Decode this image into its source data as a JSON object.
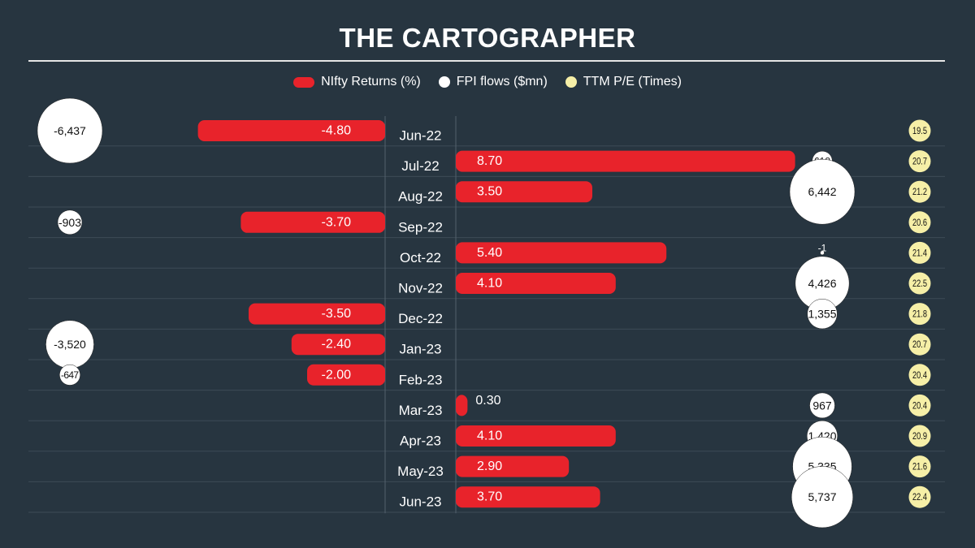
{
  "title": "THE CARTOGRAPHER",
  "colors": {
    "background": "#273540",
    "nifty": "#e8232b",
    "fpi": "#ffffff",
    "pe": "#f6efa7",
    "grid": "#3d4b56",
    "text": "#ffffff"
  },
  "legend": [
    {
      "label": "NIfty Returns (%)",
      "color": "#e8232b",
      "shape": "bar"
    },
    {
      "label": "FPI flows ($mn)",
      "color": "#ffffff",
      "shape": "dot"
    },
    {
      "label": "TTM P/E (Times)",
      "color": "#f6efa7",
      "shape": "dot"
    }
  ],
  "chart_data": {
    "type": "bar",
    "title": "THE CARTOGRAPHER",
    "categories": [
      "Jun-22",
      "Jul-22",
      "Aug-22",
      "Sep-22",
      "Oct-22",
      "Nov-22",
      "Dec-22",
      "Jan-23",
      "Feb-23",
      "Mar-23",
      "Apr-23",
      "May-23",
      "Jun-23"
    ],
    "series": [
      {
        "name": "NIfty Returns (%)",
        "values": [
          -4.8,
          8.7,
          3.5,
          -3.7,
          5.4,
          4.1,
          -3.5,
          -2.4,
          -2.0,
          0.3,
          4.1,
          2.9,
          3.7
        ],
        "labels": [
          "-4.80",
          "8.70",
          "3.50",
          "-3.70",
          "5.40",
          "4.10",
          "-3.50",
          "-2.40",
          "-2.00",
          "0.30",
          "4.10",
          "2.90",
          "3.70"
        ]
      },
      {
        "name": "FPI flows ($mn)",
        "values": [
          -6437,
          618,
          6442,
          -903,
          -1,
          4426,
          1355,
          -3520,
          -647,
          967,
          1420,
          5335,
          5737
        ],
        "labels": [
          "-6,437",
          "618",
          "6,442",
          "-903",
          "-1",
          "4,426",
          "1,355",
          "-3,520",
          "-647",
          "967",
          "1,420",
          "5,335",
          "5,737"
        ]
      },
      {
        "name": "TTM P/E (Times)",
        "values": [
          19.5,
          20.7,
          21.2,
          20.6,
          21.4,
          22.5,
          21.8,
          20.7,
          20.4,
          20.4,
          20.9,
          21.6,
          22.4
        ],
        "labels": [
          "19.5",
          "20.7",
          "21.2",
          "20.6",
          "21.4",
          "22.5",
          "21.8",
          "20.7",
          "20.4",
          "20.4",
          "20.9",
          "21.6",
          "22.4"
        ]
      }
    ],
    "legend_position": "top-center",
    "grid": true
  }
}
